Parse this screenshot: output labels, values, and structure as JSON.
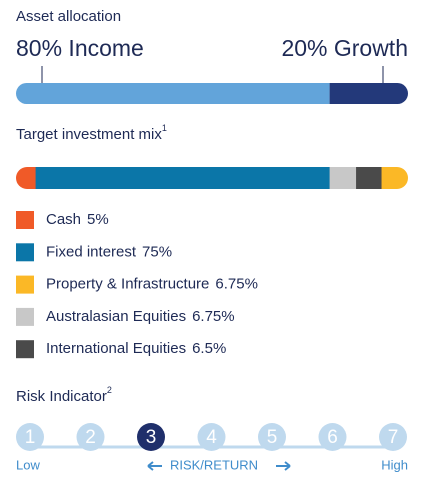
{
  "allocation": {
    "title": "Asset allocation",
    "values": [
      80,
      20
    ],
    "value_labels": [
      "80% Income",
      "20% Growth"
    ],
    "colors": [
      "#62a4da",
      "#23397a"
    ]
  },
  "mix": {
    "title": "Target investment mix",
    "footnote": "1",
    "items": [
      {
        "name": "Cash",
        "value": 5,
        "value_label": "5%",
        "color": "#f05a28"
      },
      {
        "name": "Fixed interest",
        "value": 75,
        "value_label": "75%",
        "color": "#0b76a8"
      },
      {
        "name": "Property & Infrastructure",
        "value": 6.75,
        "value_label": "6.75%",
        "color": "#fbb826"
      },
      {
        "name": "Australasian Equities",
        "value": 6.75,
        "value_label": "6.75%",
        "color": "#c8c8c8"
      },
      {
        "name": "International Equities",
        "value": 6.5,
        "value_label": "6.5%",
        "color": "#4a4a4a"
      }
    ]
  },
  "risk": {
    "title": "Risk Indicator",
    "footnote": "2",
    "levels": [
      1,
      2,
      3,
      4,
      5,
      6,
      7
    ],
    "selected": 3,
    "low": "Low",
    "axis": "RISK/RETURN",
    "high": "High"
  }
}
